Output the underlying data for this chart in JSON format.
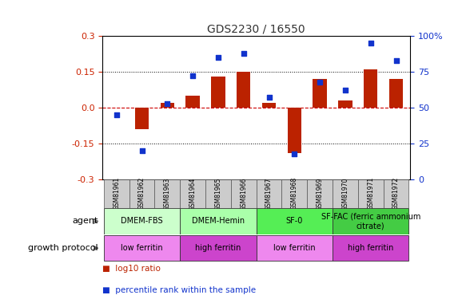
{
  "title": "GDS2230 / 16550",
  "samples": [
    "GSM81961",
    "GSM81962",
    "GSM81963",
    "GSM81964",
    "GSM81965",
    "GSM81966",
    "GSM81967",
    "GSM81968",
    "GSM81969",
    "GSM81970",
    "GSM81971",
    "GSM81972"
  ],
  "log10_ratio": [
    0.0,
    -0.09,
    0.02,
    0.05,
    0.13,
    0.15,
    0.02,
    -0.19,
    0.12,
    0.03,
    0.16,
    0.12
  ],
  "percentile_rank": [
    45,
    20,
    53,
    72,
    85,
    88,
    57,
    18,
    68,
    62,
    95,
    83
  ],
  "ylim": [
    -0.3,
    0.3
  ],
  "yticks_left": [
    -0.3,
    -0.15,
    0.0,
    0.15,
    0.3
  ],
  "yticks_right": [
    0,
    25,
    50,
    75,
    100
  ],
  "hlines": [
    -0.15,
    0.15
  ],
  "bar_color": "#bb2200",
  "dot_color": "#1133cc",
  "agent_groups": [
    {
      "label": "DMEM-FBS",
      "start": 0,
      "end": 3,
      "color": "#ccffcc"
    },
    {
      "label": "DMEM-Hemin",
      "start": 3,
      "end": 6,
      "color": "#aaffaa"
    },
    {
      "label": "SF-0",
      "start": 6,
      "end": 9,
      "color": "#55ee55"
    },
    {
      "label": "SF-FAC (ferric ammonium\ncitrate)",
      "start": 9,
      "end": 12,
      "color": "#44cc44"
    }
  ],
  "growth_groups": [
    {
      "label": "low ferritin",
      "start": 0,
      "end": 3,
      "color": "#ee88ee"
    },
    {
      "label": "high ferritin",
      "start": 3,
      "end": 6,
      "color": "#cc44cc"
    },
    {
      "label": "low ferritin",
      "start": 6,
      "end": 9,
      "color": "#ee88ee"
    },
    {
      "label": "high ferritin",
      "start": 9,
      "end": 12,
      "color": "#cc44cc"
    }
  ],
  "legend_bar_label": "log10 ratio",
  "legend_dot_label": "percentile rank within the sample"
}
